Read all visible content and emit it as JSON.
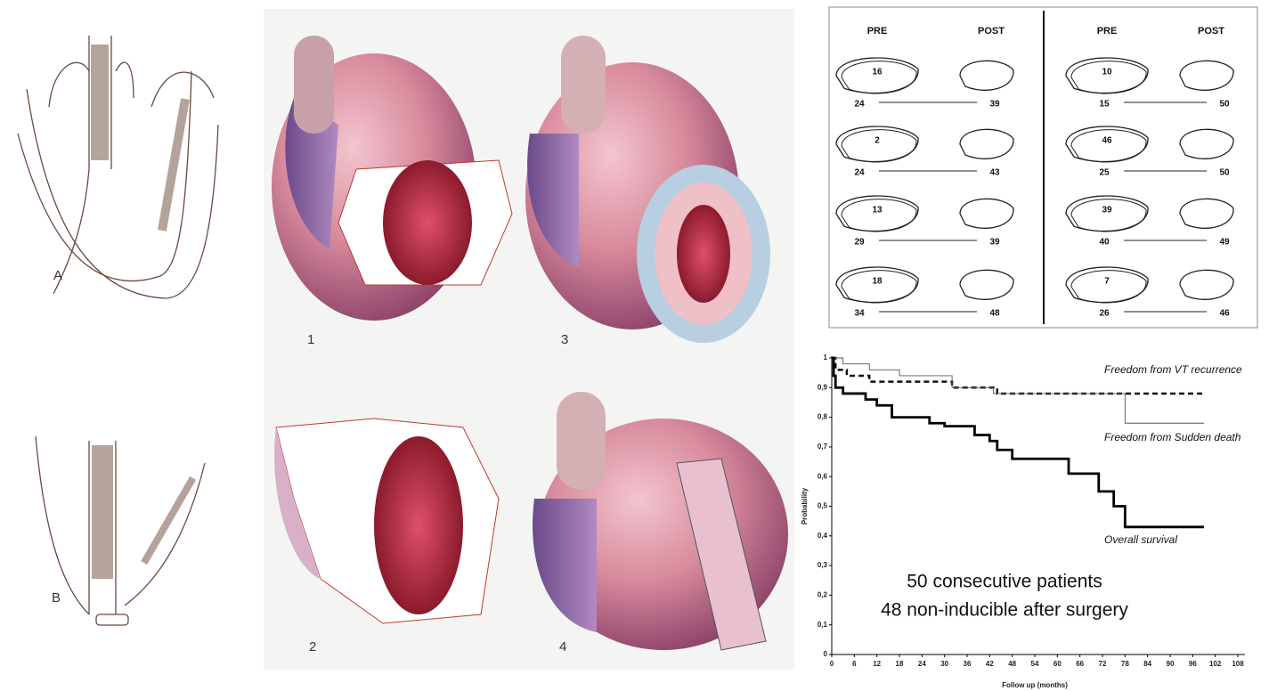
{
  "panel_labels": {
    "a": "A",
    "b": "B",
    "p1": "1",
    "p2": "2",
    "p3": "3",
    "p4": "4"
  },
  "diagram": {
    "columns": [
      {
        "pre_label": "PRE",
        "post_label": "POST",
        "rows": [
          {
            "inner": 16,
            "pre": 24,
            "post": 39
          },
          {
            "inner": 2,
            "pre": 24,
            "post": 43
          },
          {
            "inner": 13,
            "pre": 29,
            "post": 39
          },
          {
            "inner": 18,
            "pre": 34,
            "post": 48
          }
        ]
      },
      {
        "pre_label": "PRE",
        "post_label": "POST",
        "rows": [
          {
            "inner": 10,
            "pre": 15,
            "post": 50
          },
          {
            "inner": 46,
            "pre": 25,
            "post": 50
          },
          {
            "inner": 39,
            "pre": 40,
            "post": 49
          },
          {
            "inner": 7,
            "pre": 26,
            "post": 46
          }
        ]
      }
    ]
  },
  "chart_data": {
    "type": "line",
    "step": true,
    "xlabel": "Follow up (months)",
    "ylabel": "Probability",
    "xlim": [
      0,
      108
    ],
    "ylim": [
      0,
      1
    ],
    "xticks": [
      0,
      6,
      12,
      18,
      24,
      30,
      36,
      42,
      48,
      54,
      60,
      66,
      72,
      78,
      84,
      90,
      96,
      102,
      108
    ],
    "yticks": [
      0,
      {
        "value": 0.1,
        "label": "0,1"
      },
      {
        "value": 0.2,
        "label": "0,2"
      },
      {
        "value": 0.3,
        "label": "0,3"
      },
      {
        "value": 0.4,
        "label": "0,4"
      },
      {
        "value": 0.5,
        "label": "0,5"
      },
      {
        "value": 0.6,
        "label": "0,6"
      },
      {
        "value": 0.7,
        "label": "0,7"
      },
      {
        "value": 0.8,
        "label": "0,8"
      },
      {
        "value": 0.9,
        "label": "0,9"
      },
      1
    ],
    "series": [
      {
        "name": "Freedom from VT recurrence",
        "color": "#111111",
        "dashed": true,
        "x": [
          0,
          1,
          4,
          10,
          32,
          44,
          99
        ],
        "values": [
          1,
          0.96,
          0.94,
          0.92,
          0.9,
          0.88,
          0.88
        ]
      },
      {
        "name": "Freedom from Sudden death",
        "color": "#555555",
        "dashed": false,
        "x": [
          0,
          3,
          10,
          18,
          32,
          43,
          78,
          99
        ],
        "values": [
          1,
          0.98,
          0.96,
          0.94,
          0.9,
          0.88,
          0.78,
          0.78
        ]
      },
      {
        "name": "Overall survival",
        "color": "#000000",
        "dashed": false,
        "x": [
          0,
          0.5,
          1,
          3,
          9,
          12,
          16,
          26,
          30,
          38,
          42,
          44,
          48,
          63,
          71,
          75,
          78,
          99
        ],
        "values": [
          1,
          0.94,
          0.9,
          0.88,
          0.86,
          0.84,
          0.8,
          0.78,
          0.77,
          0.74,
          0.72,
          0.69,
          0.66,
          0.61,
          0.55,
          0.5,
          0.43,
          0.43
        ]
      }
    ],
    "annotations": [
      "50 consecutive patients",
      "48 non-inducible after surgery"
    ]
  }
}
